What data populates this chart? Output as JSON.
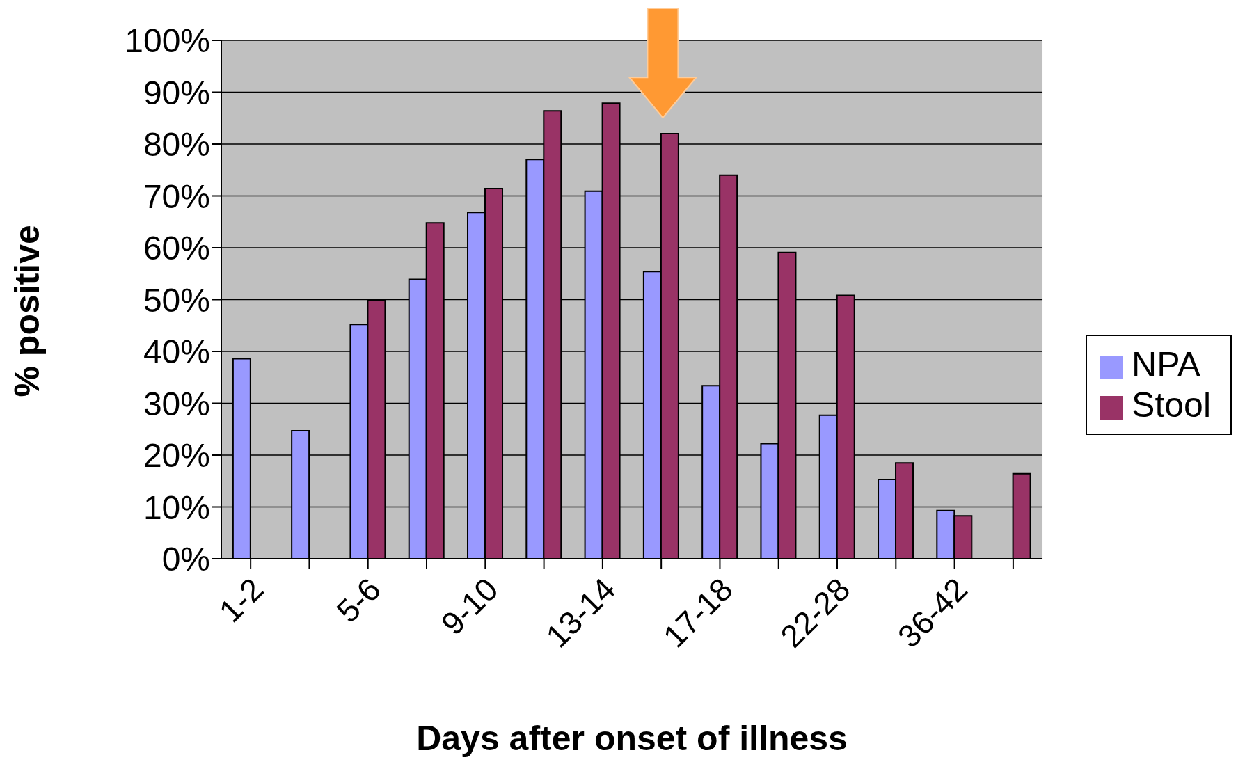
{
  "chart_data": {
    "type": "bar",
    "xlabel": "Days after onset of illness",
    "ylabel": "% positive",
    "categories": [
      "1-2",
      null,
      "5-6",
      null,
      "9-10",
      null,
      "13-14",
      null,
      "17-18",
      null,
      "22-28",
      null,
      "36-42",
      null
    ],
    "series": [
      {
        "name": "NPA",
        "color": "#9999ff",
        "values": [
          38.6,
          24.7,
          45.2,
          53.9,
          66.8,
          77.0,
          70.9,
          55.4,
          33.4,
          22.2,
          27.7,
          15.3,
          9.3,
          null
        ]
      },
      {
        "name": "Stool",
        "color": "#993366",
        "values": [
          null,
          null,
          49.8,
          64.8,
          71.4,
          86.4,
          87.9,
          82,
          74.0,
          59.1,
          50.8,
          18.5,
          8.3,
          16.4
        ]
      }
    ],
    "ylim": [
      0,
      100
    ],
    "yticks": [
      {
        "value": 0,
        "label": "0%"
      },
      {
        "value": 10,
        "label": "10%"
      },
      {
        "value": 20,
        "label": "20%"
      },
      {
        "value": 30,
        "label": "30%"
      },
      {
        "value": 40,
        "label": "40%"
      },
      {
        "value": 50,
        "label": "50%"
      },
      {
        "value": 60,
        "label": "60%"
      },
      {
        "value": 70,
        "label": "70%"
      },
      {
        "value": 80,
        "label": "80%"
      },
      {
        "value": 90,
        "label": "90%"
      },
      {
        "value": 100,
        "label": "100%"
      }
    ],
    "grid": "y",
    "legend": "right"
  }
}
